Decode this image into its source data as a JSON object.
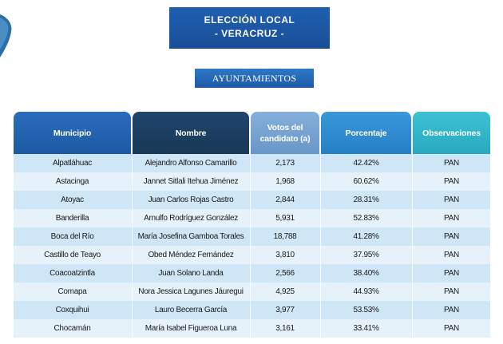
{
  "header": {
    "title_line1": "ELECCIÓN LOCAL",
    "title_line2": "- VERACRUZ -",
    "section": "AYUNTAMIENTOS"
  },
  "colors": {
    "col_municipio": "#1f5fb0",
    "col_nombre": "#1a3a5c",
    "col_votos": "#6e9fd0",
    "col_porcentaje": "#2c8ad0",
    "col_observaciones": "#2fb3c9"
  },
  "table": {
    "columns": [
      "Municipio",
      "Nombre",
      "Votos del candidato (a)",
      "Porcentaje",
      "Observaciones"
    ],
    "rows": [
      [
        "Alpatláhuac",
        "Alejandro Alfonso Camarillo",
        "2,173",
        "42.42%",
        "PAN"
      ],
      [
        "Astacinga",
        "Jannet Sitlali Itehua Jiménez",
        "1,968",
        "60.62%",
        "PAN"
      ],
      [
        "Atoyac",
        "Juan Carlos Rojas Castro",
        "2,844",
        "28.31%",
        "PAN"
      ],
      [
        "Banderilla",
        "Arnulfo Rodríguez González",
        "5,931",
        "52.83%",
        "PAN"
      ],
      [
        "Boca del Río",
        "María Josefina Gamboa Torales",
        "18,788",
        "41.28%",
        "PAN"
      ],
      [
        "Castillo de Teayo",
        "Obed Méndez Fernández",
        "3,810",
        "37.95%",
        "PAN"
      ],
      [
        "Coacoatzintla",
        "Juan Solano Landa",
        "2,566",
        "38.40%",
        "PAN"
      ],
      [
        "Comapa",
        "Nora Jessica Lagunes Jáuregui",
        "4,925",
        "44.93%",
        "PAN"
      ],
      [
        "Coxquihui",
        "Lauro Becerra García",
        "3,977",
        "53.53%",
        "PAN"
      ],
      [
        "Chocamán",
        "María Isabel Figueroa Luna",
        "3,161",
        "33.41%",
        "PAN"
      ]
    ]
  }
}
